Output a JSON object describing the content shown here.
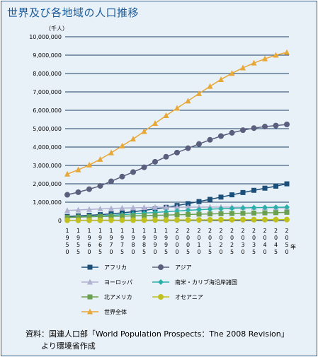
{
  "title": "世界及び各地域の人口推移",
  "source": {
    "line1": "資料：国連人口部「World Population Prospects：The 2008 Revision」",
    "line2": "より環境省作成"
  },
  "chart_data": {
    "type": "line",
    "unit_label": "（千人）",
    "x_unit": "年",
    "x": [
      1950,
      1955,
      1960,
      1965,
      1970,
      1975,
      1980,
      1985,
      1990,
      1995,
      2000,
      2005,
      2010,
      2015,
      2020,
      2025,
      2030,
      2035,
      2040,
      2045,
      2050
    ],
    "ylim": [
      0,
      10000000
    ],
    "yticks": [
      "0",
      "1,000,000",
      "2,000,000",
      "3,000,000",
      "4,000,000",
      "5,000,000",
      "6,000,000",
      "7,000,000",
      "8,000,000",
      "9,000,000",
      "10,000,000"
    ],
    "legend_position": "bottom",
    "grid": "horizontal",
    "series": [
      {
        "name": "アフリカ",
        "color": "#1b4f7a",
        "marker": "square",
        "values": [
          227000,
          254000,
          286000,
          322000,
          366000,
          419000,
          482000,
          555000,
          638000,
          720000,
          819000,
          921000,
          1033000,
          1153000,
          1276000,
          1400000,
          1524000,
          1645000,
          1761000,
          1870000,
          1998000
        ]
      },
      {
        "name": "アジア",
        "color": "#5b5f7e",
        "marker": "circle",
        "values": [
          1403000,
          1542000,
          1708000,
          1886000,
          2135000,
          2393000,
          2638000,
          2898000,
          3199000,
          3470000,
          3698000,
          3937000,
          4167000,
          4393000,
          4596000,
          4773000,
          4917000,
          5030000,
          5113000,
          5168000,
          5231000
        ]
      },
      {
        "name": "ヨーロッパ",
        "color": "#b0b0d0",
        "marker": "triangle",
        "values": [
          547000,
          575000,
          604000,
          634000,
          656000,
          676000,
          693000,
          706000,
          721000,
          727000,
          727000,
          729000,
          733000,
          734000,
          733000,
          729000,
          723000,
          715000,
          705000,
          694000,
          691000
        ]
      },
      {
        "name": "南米・カリブ海沿岸諸国",
        "color": "#2ab0a8",
        "marker": "diamond",
        "values": [
          167000,
          191000,
          220000,
          253000,
          286000,
          323000,
          362000,
          402000,
          441000,
          481000,
          521000,
          557000,
          589000,
          619000,
          646000,
          669000,
          687000,
          700000,
          710000,
          720000,
          729000
        ]
      },
      {
        "name": "北アメリカ",
        "color": "#6aa050",
        "marker": "square",
        "values": [
          172000,
          187000,
          204000,
          219000,
          231000,
          242000,
          254000,
          267000,
          282000,
          300000,
          315000,
          330000,
          348000,
          361000,
          374000,
          387000,
          400000,
          411000,
          421000,
          430000,
          448000
        ]
      },
      {
        "name": "オセアニア",
        "color": "#c0c020",
        "marker": "circle",
        "values": [
          13000,
          14000,
          16000,
          18000,
          20000,
          21000,
          23000,
          25000,
          27000,
          29000,
          31000,
          33000,
          36000,
          39000,
          41000,
          44000,
          46000,
          48000,
          50000,
          52000,
          51000
        ]
      },
      {
        "name": "世界全体",
        "color": "#e8a838",
        "marker": "triangle",
        "values": [
          2529000,
          2763000,
          3023000,
          3332000,
          3686000,
          4061000,
          4438000,
          4846000,
          5290000,
          5713000,
          6115000,
          6512000,
          6909000,
          7302000,
          7675000,
          8012000,
          8309000,
          8571000,
          8801000,
          9000000,
          9150000
        ]
      }
    ]
  }
}
